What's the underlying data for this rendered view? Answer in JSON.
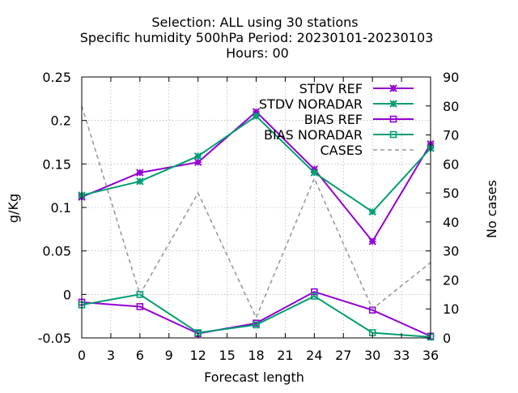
{
  "title_lines": [
    "Selection: ALL using    30 stations",
    "Specific humidity 500hPa   Period: 20230101-20230103",
    "Hours:  00"
  ],
  "chart_data": {
    "type": "line",
    "xlabel": "Forecast length",
    "ylabel": "g/Kg",
    "y2label": "No cases",
    "xlim": [
      0,
      36
    ],
    "ylim": [
      -0.05,
      0.25
    ],
    "y2lim": [
      0,
      90
    ],
    "x_ticks": [
      0,
      3,
      6,
      9,
      12,
      15,
      18,
      21,
      24,
      27,
      30,
      33,
      36
    ],
    "y_ticks": [
      -0.05,
      0,
      0.05,
      0.1,
      0.15,
      0.2,
      0.25
    ],
    "y_tick_labels": [
      "-0.05",
      "0",
      "0.05",
      "0.1",
      "0.15",
      "0.2",
      "0.25"
    ],
    "y2_ticks": [
      0,
      10,
      20,
      30,
      40,
      50,
      60,
      70,
      80,
      90
    ],
    "grid": true,
    "legend_position": "top-right",
    "series": [
      {
        "name": "STDV REF",
        "color": "#9400d3",
        "marker": "star",
        "dash": false,
        "axis": "y",
        "x": [
          0,
          6,
          12,
          18,
          24,
          30,
          36
        ],
        "y": [
          0.112,
          0.14,
          0.152,
          0.21,
          0.144,
          0.061,
          0.173
        ]
      },
      {
        "name": "STDV NORADAR",
        "color": "#009e73",
        "marker": "star",
        "dash": false,
        "axis": "y",
        "x": [
          0,
          6,
          12,
          18,
          24,
          30,
          36
        ],
        "y": [
          0.114,
          0.13,
          0.159,
          0.205,
          0.14,
          0.095,
          0.168
        ]
      },
      {
        "name": "BIAS REF",
        "color": "#9400d3",
        "marker": "square",
        "dash": false,
        "axis": "y",
        "x": [
          0,
          6,
          12,
          18,
          24,
          30,
          36
        ],
        "y": [
          -0.009,
          -0.014,
          -0.045,
          -0.033,
          0.003,
          -0.018,
          -0.048
        ]
      },
      {
        "name": "BIAS NORADAR",
        "color": "#009e73",
        "marker": "square",
        "dash": false,
        "axis": "y",
        "x": [
          0,
          6,
          12,
          18,
          24,
          30,
          36
        ],
        "y": [
          -0.012,
          0.0,
          -0.044,
          -0.035,
          -0.002,
          -0.044,
          -0.049
        ]
      },
      {
        "name": "CASES",
        "color": "#999999",
        "marker": "none",
        "dash": true,
        "axis": "y2",
        "x": [
          0,
          6,
          12,
          18,
          24,
          30,
          36
        ],
        "y": [
          80,
          15,
          50,
          7,
          55,
          10,
          26
        ]
      }
    ]
  }
}
